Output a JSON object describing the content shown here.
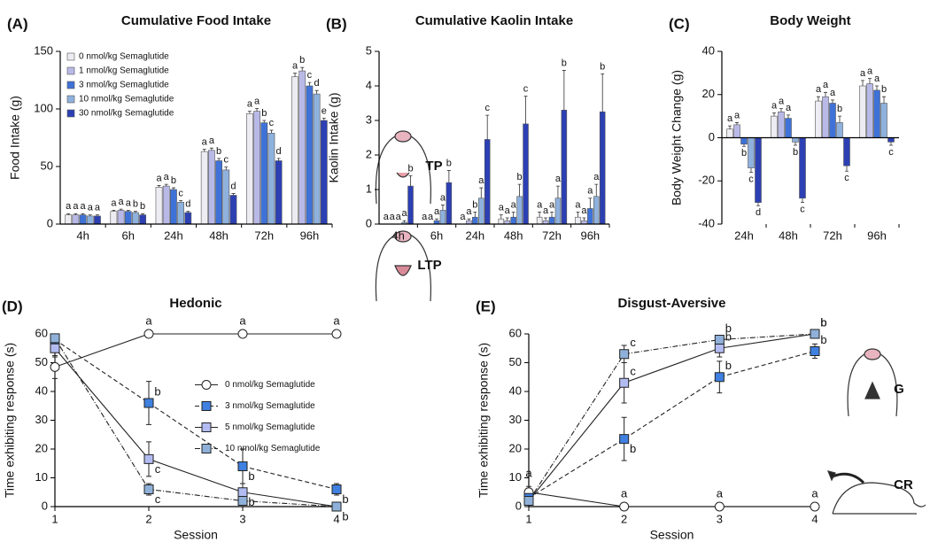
{
  "chart_data": [
    {
      "type": "bar",
      "label": "(A)",
      "title": "Cumulative Food Intake",
      "ylabel": "Food Intake (g)",
      "categories": [
        "4h",
        "6h",
        "24h",
        "48h",
        "72h",
        "96h"
      ],
      "ylim": [
        0,
        150
      ],
      "yticks": [
        0,
        50,
        100,
        150
      ],
      "legend": "upper left",
      "series": [
        {
          "name": "0 nmol/kg Semaglutide",
          "color": "#ececf2",
          "values": [
            8,
            11,
            32,
            63,
            96,
            128
          ],
          "errors": [
            1,
            1,
            1.5,
            2,
            2,
            3
          ],
          "letters": [
            "a",
            "a",
            "a",
            "a",
            "a",
            "a"
          ]
        },
        {
          "name": "1 nmol/kg Semaglutide",
          "color": "#b9b9e8",
          "values": [
            8,
            12,
            33,
            64,
            98,
            133
          ],
          "errors": [
            1,
            1,
            1.5,
            2,
            2.5,
            3
          ],
          "letters": [
            "a",
            "a",
            "a",
            "a",
            "a",
            "b"
          ]
        },
        {
          "name": "3 nmol/kg Semaglutide",
          "color": "#3f72d8",
          "values": [
            8,
            11,
            30,
            55,
            88,
            120
          ],
          "errors": [
            1,
            1,
            1.5,
            2,
            2,
            3
          ],
          "letters": [
            "a",
            "a",
            "b",
            "b",
            "b",
            "c"
          ]
        },
        {
          "name": "10 nmol/kg Semaglutide",
          "color": "#8fb1dd",
          "values": [
            7,
            10,
            19,
            47,
            79,
            113
          ],
          "errors": [
            1,
            1,
            1.5,
            2.5,
            2.5,
            3
          ],
          "letters": [
            "a",
            "b",
            "c",
            "c",
            "c",
            "d"
          ]
        },
        {
          "name": "30 nmol/kg Semaglutide",
          "color": "#2c40b4",
          "values": [
            7,
            8,
            10,
            25,
            55,
            90
          ],
          "errors": [
            1,
            1,
            1,
            1.5,
            2,
            2
          ],
          "letters": [
            "a",
            "b",
            "d",
            "d",
            "d",
            "e"
          ]
        }
      ]
    },
    {
      "type": "bar",
      "label": "(B)",
      "title": "Cumulative Kaolin Intake",
      "ylabel": "Kaolin Intake (g)",
      "categories": [
        "4h",
        "6h",
        "24h",
        "48h",
        "72h",
        "96h"
      ],
      "ylim": [
        0,
        5
      ],
      "yticks": [
        0,
        1,
        2,
        3,
        4,
        5
      ],
      "series": [
        {
          "color": "#ececf2",
          "values": [
            0,
            0,
            0,
            0.15,
            0.2,
            0.2
          ],
          "errors": [
            0,
            0,
            0,
            0.12,
            0.15,
            0.15
          ],
          "letters": [
            "a",
            "a",
            "a",
            "a",
            "a",
            "a"
          ]
        },
        {
          "color": "#b9b9e8",
          "values": [
            0,
            0,
            0.1,
            0.1,
            0.1,
            0.1
          ],
          "errors": [
            0,
            0,
            0.05,
            0.08,
            0.08,
            0.08
          ],
          "letters": [
            "a",
            "a",
            "a",
            "a",
            "a",
            "a"
          ]
        },
        {
          "color": "#3f72d8",
          "values": [
            0,
            0.1,
            0.2,
            0.2,
            0.2,
            0.45
          ],
          "errors": [
            0,
            0.05,
            0.15,
            0.15,
            0.15,
            0.3
          ],
          "letters": [
            "a",
            "a",
            "b",
            "a",
            "a",
            "a"
          ]
        },
        {
          "color": "#8fb1dd",
          "values": [
            0.05,
            0.4,
            0.75,
            0.8,
            0.75,
            0.8
          ],
          "errors": [
            0.05,
            0.15,
            0.3,
            0.35,
            0.35,
            0.35
          ],
          "letters": [
            "a",
            "a",
            "a",
            "b",
            "a",
            "a"
          ]
        },
        {
          "color": "#2c40b4",
          "values": [
            1.1,
            1.2,
            2.45,
            2.9,
            3.3,
            3.25
          ],
          "errors": [
            0.3,
            0.35,
            0.7,
            0.8,
            1.15,
            1.1
          ],
          "letters": [
            "b",
            "b",
            "c",
            "c",
            "b",
            "b"
          ]
        }
      ]
    },
    {
      "type": "bar",
      "label": "(C)",
      "title": "Body Weight",
      "ylabel": "Body Weight Change (g)",
      "categories": [
        "24h",
        "48h",
        "72h",
        "96h"
      ],
      "ylim": [
        -40,
        40
      ],
      "yticks": [
        -40,
        -20,
        0,
        20,
        40
      ],
      "series": [
        {
          "color": "#ececf2",
          "values": [
            4,
            10,
            17,
            24
          ],
          "errors": [
            1.5,
            1.5,
            2,
            2.5
          ],
          "letters": [
            "a",
            "a",
            "a",
            "a"
          ]
        },
        {
          "color": "#b9b9e8",
          "values": [
            6,
            12,
            19,
            25
          ],
          "errors": [
            1,
            1.5,
            2,
            2.5
          ],
          "letters": [
            "a",
            "a",
            "a",
            "a"
          ]
        },
        {
          "color": "#3f72d8",
          "values": [
            -3,
            9,
            16,
            22
          ],
          "errors": [
            1,
            1.5,
            1.5,
            2
          ],
          "letters": [
            "b",
            "a",
            "a",
            "a"
          ]
        },
        {
          "color": "#8fb1dd",
          "values": [
            -14,
            -2,
            7,
            16
          ],
          "errors": [
            2,
            1.5,
            3,
            3
          ],
          "letters": [
            "c",
            "b",
            "b",
            "b"
          ]
        },
        {
          "color": "#2c40b4",
          "values": [
            -30,
            -28,
            -13,
            -2
          ],
          "errors": [
            1.5,
            2,
            2.5,
            1.5
          ],
          "letters": [
            "d",
            "c",
            "c",
            "c"
          ]
        }
      ]
    },
    {
      "type": "line",
      "label": "(D)",
      "title": "Hedonic",
      "xlabel": "Session",
      "ylabel": "Time exhibiting response (s)",
      "x": [
        1,
        2,
        3,
        4
      ],
      "xlim": [
        1,
        4
      ],
      "xticks": [
        1,
        2,
        3,
        4
      ],
      "ylim": [
        0,
        60
      ],
      "yticks": [
        0,
        10,
        20,
        30,
        40,
        50,
        60
      ],
      "legend": "center right",
      "annotations": [
        "TP",
        "LTP"
      ],
      "series": [
        {
          "name": "0 nmol/kg Semaglutide",
          "color": "#ffffff",
          "marker": "circle",
          "line_style": "solid",
          "values": [
            48.5,
            60,
            60,
            60
          ],
          "errors": [
            4,
            0,
            0,
            0
          ],
          "letters": [
            "a",
            "a",
            "a",
            "a"
          ]
        },
        {
          "name": "3 nmol/kg Semaglutide",
          "color": "#3f80e0",
          "marker": "square",
          "line_style": "dashed",
          "values": [
            58,
            36,
            14,
            6
          ],
          "errors": [
            1.5,
            7.5,
            6,
            2
          ],
          "letters": [
            null,
            "b",
            "b",
            "b"
          ]
        },
        {
          "name": "5 nmol/kg Semaglutide",
          "color": "#b3bcf2",
          "marker": "square",
          "line_style": "solid",
          "values": [
            55,
            16.5,
            5,
            0
          ],
          "errors": [
            3,
            6,
            3,
            0
          ],
          "letters": [
            null,
            "c",
            "b",
            "b"
          ]
        },
        {
          "name": "10 nmol/kg Semaglutide",
          "color": "#8fb1d9",
          "marker": "square",
          "line_style": "dashdot",
          "values": [
            58.5,
            6,
            2,
            0
          ],
          "errors": [
            1.5,
            2,
            1,
            0
          ],
          "letters": [
            null,
            "c",
            null,
            null
          ]
        }
      ]
    },
    {
      "type": "line",
      "label": "(E)",
      "title": "Disgust-Aversive",
      "xlabel": "Session",
      "ylabel": "Time exhibiting response (s)",
      "x": [
        1,
        2,
        3,
        4
      ],
      "xlim": [
        1,
        4
      ],
      "xticks": [
        1,
        2,
        3,
        4
      ],
      "ylim": [
        0,
        60
      ],
      "yticks": [
        0,
        10,
        20,
        30,
        40,
        50,
        60
      ],
      "annotations": [
        "G",
        "CR"
      ],
      "series": [
        {
          "color": "#ffffff",
          "marker": "circle",
          "line_style": "solid",
          "values": [
            5,
            0,
            0,
            0
          ],
          "errors": [
            2,
            0,
            0,
            0
          ],
          "letters": [
            "a",
            "a",
            "a",
            "a"
          ]
        },
        {
          "color": "#3f80e0",
          "marker": "square",
          "line_style": "dashed",
          "values": [
            3,
            23.5,
            45,
            54
          ],
          "errors": [
            1.5,
            7.5,
            5.5,
            2.5
          ],
          "letters": [
            null,
            "b",
            "b",
            "b"
          ]
        },
        {
          "color": "#b3bcf2",
          "marker": "square",
          "line_style": "solid",
          "values": [
            2,
            43,
            55,
            60
          ],
          "errors": [
            1,
            7,
            3,
            0
          ],
          "letters": [
            null,
            "c",
            "b",
            "b"
          ]
        },
        {
          "color": "#8fb1d9",
          "marker": "square",
          "line_style": "dashdot",
          "values": [
            2,
            53,
            58,
            60
          ],
          "errors": [
            1,
            3,
            1.5,
            0
          ],
          "letters": [
            null,
            "c",
            "b",
            "b"
          ]
        }
      ]
    }
  ]
}
